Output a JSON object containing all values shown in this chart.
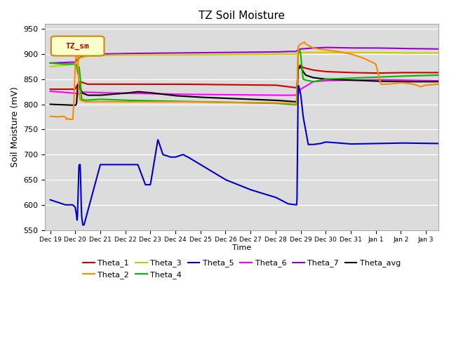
{
  "title": "TZ Soil Moisture",
  "xlabel": "Time",
  "ylabel": "Soil Moisture (mV)",
  "ylim": [
    550,
    960
  ],
  "yticks": [
    550,
    600,
    650,
    700,
    750,
    800,
    850,
    900,
    950
  ],
  "bg_color": "#dcdcdc",
  "legend_label": "TZ_sm",
  "series_colors": {
    "Theta_1": "#cc0000",
    "Theta_2": "#ff8800",
    "Theta_3": "#cccc00",
    "Theta_4": "#00bb00",
    "Theta_5": "#0000cc",
    "Theta_6": "#ff00ff",
    "Theta_7": "#9900cc",
    "Theta_avg": "#000000"
  }
}
